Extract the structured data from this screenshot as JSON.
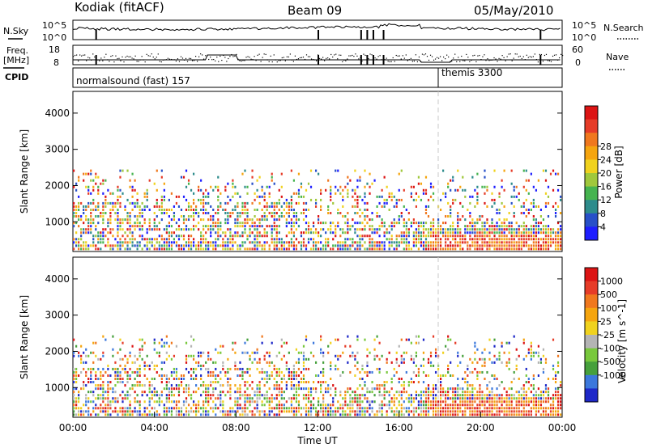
{
  "header": {
    "station": "Kodiak (fitACF)",
    "beam": "Beam 09",
    "date": "05/May/2010"
  },
  "strips": {
    "nsky_label": "N.Sky",
    "nsky_ticks": [
      "10^5",
      "10^0"
    ],
    "nsearch_label": "N.Search",
    "nsearch_ticks": [
      "10^5",
      "10^0"
    ],
    "freq_label_line1": "Freq.",
    "freq_label_line2": "[MHz]",
    "freq_ticks": [
      "18",
      "8"
    ],
    "nave_label": "Nave",
    "nave_ticks": [
      "60",
      "0"
    ],
    "cpid_label": "CPID",
    "cpid_segments": [
      {
        "label": "normalsound (fast) 157",
        "start_hour": 0
      },
      {
        "label": "themis 3300",
        "start_hour": 18
      }
    ]
  },
  "chart_data": [
    {
      "type": "heatmap",
      "name": "power-panel",
      "ylabel": "Slant Range [km]",
      "y_ticks": [
        1000,
        2000,
        3000,
        4000
      ],
      "ylim": [
        180,
        4600
      ],
      "xlim": [
        0,
        24
      ],
      "colorbar": {
        "label": "Power [dB]",
        "ticks": [
          "4",
          "8",
          "12",
          "16",
          "20",
          "24",
          "28"
        ],
        "colors": [
          "#1e1eff",
          "#2850c8",
          "#2e8c8c",
          "#46b450",
          "#a0c83c",
          "#f0d21e",
          "#f5a50f",
          "#f0781e",
          "#e63c28",
          "#dc1414"
        ]
      },
      "sample_bands": [
        {
          "range_km": [
            300,
            400
          ],
          "hours": [
            0,
            24
          ],
          "level": "low"
        },
        {
          "range_km": [
            600,
            1000
          ],
          "hours": [
            0,
            24
          ],
          "level": "mixed"
        },
        {
          "range_km": [
            1100,
            1500
          ],
          "hours": [
            0,
            11.5
          ],
          "level": "medium"
        },
        {
          "range_km": [
            1600,
            2400
          ],
          "hours": [
            0,
            24
          ],
          "level": "sparse"
        },
        {
          "range_km": [
            450,
            800
          ],
          "hours": [
            17,
            24
          ],
          "level": "high"
        }
      ]
    },
    {
      "type": "heatmap",
      "name": "velocity-panel",
      "ylabel": "Slant Range [km]",
      "y_ticks": [
        1000,
        2000,
        3000,
        4000
      ],
      "ylim": [
        180,
        4600
      ],
      "xlim": [
        0,
        24
      ],
      "colorbar": {
        "label": "Velocity [m s^-1]",
        "ticks": [
          "1000",
          "500",
          "100",
          "25",
          "-25",
          "-100",
          "-500",
          "-1000"
        ],
        "colors": [
          "#1e28c8",
          "#3c78dc",
          "#46a03c",
          "#78c83c",
          "#b4b4b4",
          "#f0d21e",
          "#f5a50f",
          "#f0781e",
          "#e63c28",
          "#dc1414"
        ]
      }
    }
  ],
  "x_axis": {
    "label": "Time UT",
    "ticks": [
      "00:00",
      "04:00",
      "08:00",
      "12:00",
      "16:00",
      "20:00",
      "00:00"
    ]
  },
  "palette": {
    "nsky_line": "#000000",
    "dashed_marker": "#c8c8c8"
  }
}
